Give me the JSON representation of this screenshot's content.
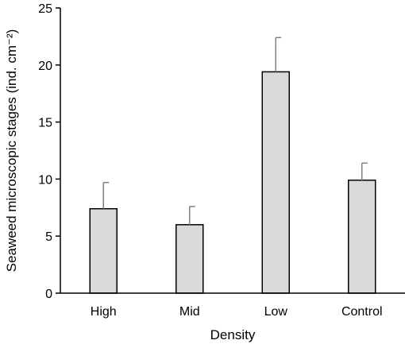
{
  "chart_data": {
    "type": "bar",
    "title": "",
    "xlabel": "Density",
    "ylabel": "Seaweed microscopic stages (ind. cm⁻²)",
    "categories": [
      "High",
      "Mid",
      "Low",
      "Control"
    ],
    "values": [
      7.4,
      6.0,
      19.4,
      9.9
    ],
    "error_upper": [
      9.7,
      7.6,
      22.4,
      11.4
    ],
    "ylim": [
      0,
      25
    ],
    "yticks": [
      0,
      5,
      10,
      15,
      20,
      25
    ],
    "grid": false,
    "legend": "none",
    "colors": {
      "bar_fill": "#d9d9d9",
      "bar_stroke": "#000000",
      "error_bar": "#7f7f7f"
    }
  }
}
